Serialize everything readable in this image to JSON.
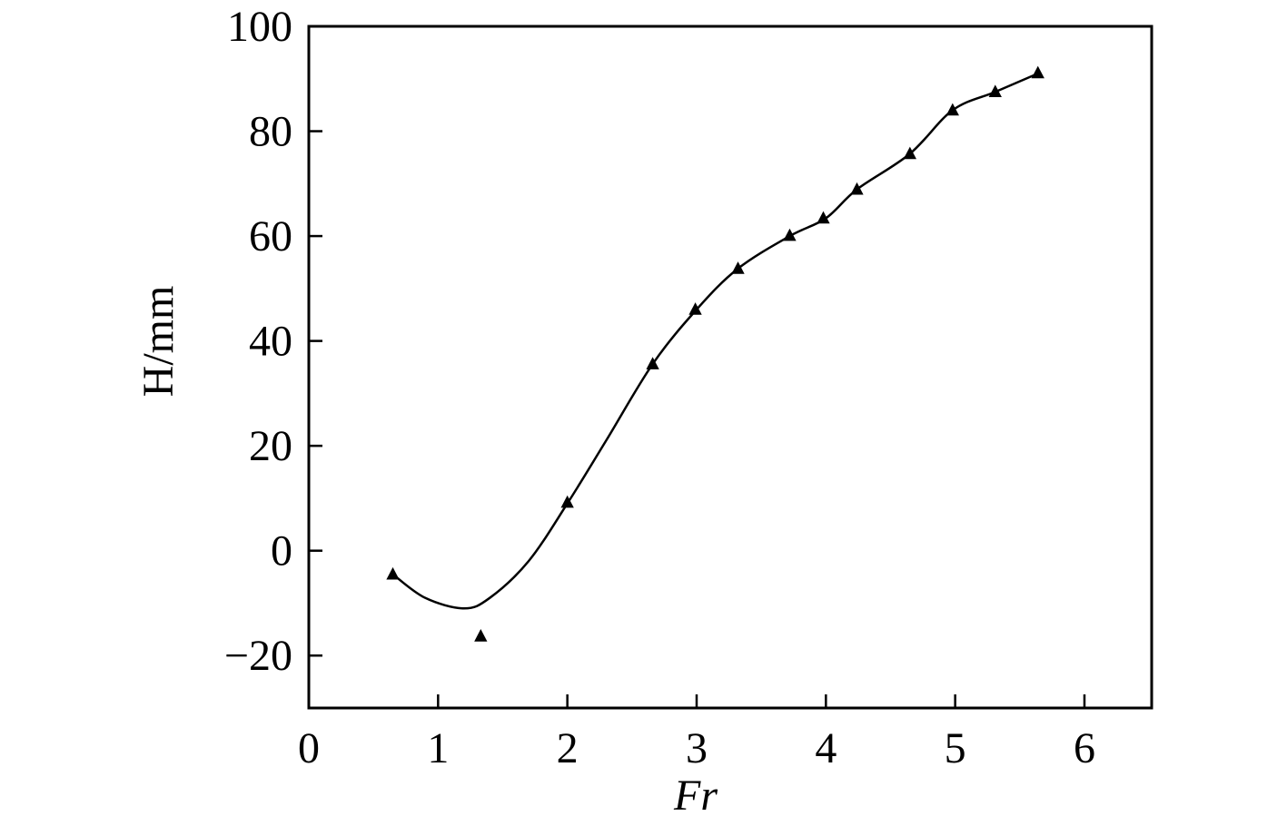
{
  "chart_data": {
    "type": "scatter",
    "x_label": "Fr",
    "y_label": "H/mm",
    "xlim": [
      0,
      6.52
    ],
    "ylim": [
      -30,
      100
    ],
    "xticks": [
      0,
      1,
      2,
      3,
      4,
      5,
      6
    ],
    "yticks": [
      {
        "value": -20,
        "label": "−20"
      },
      0,
      20,
      40,
      60,
      80,
      100
    ],
    "color": "#000000",
    "series": [
      {
        "marker": "triangle",
        "x": [
          0.65,
          1.33,
          2.0,
          2.66,
          2.99,
          3.32,
          3.72,
          3.98,
          4.24,
          4.65,
          4.98,
          5.31,
          5.64
        ],
        "values": [
          -4.5,
          -16.3,
          9.2,
          35.6,
          46.0,
          53.8,
          60.1,
          63.4,
          68.9,
          75.7,
          84.0,
          87.5,
          91.1
        ]
      },
      {
        "marker": "line",
        "x": [
          0.65,
          0.9,
          1.2,
          1.4,
          1.7,
          2.0,
          2.3,
          2.66,
          3.0,
          3.32,
          3.72,
          4.0,
          4.24,
          4.65,
          4.98,
          5.31,
          5.64
        ],
        "values": [
          -4.5,
          -9,
          -11,
          -9,
          -2,
          9,
          21,
          35.6,
          46,
          53.8,
          60,
          63.4,
          68.9,
          75.7,
          84,
          87.5,
          91
        ]
      }
    ]
  }
}
